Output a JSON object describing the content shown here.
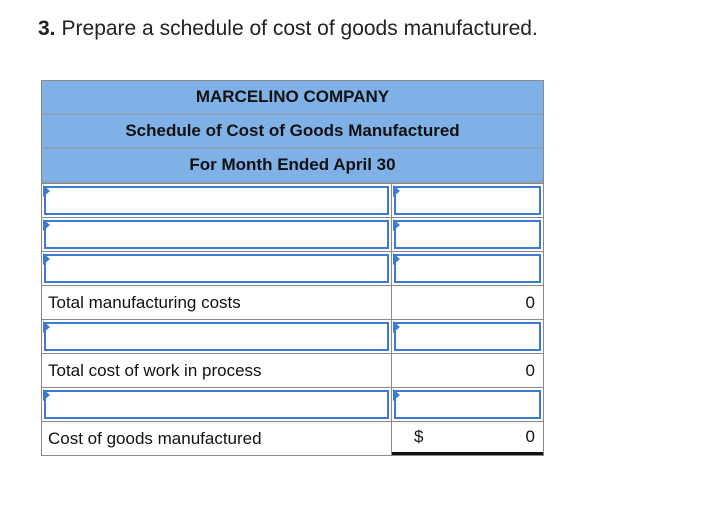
{
  "question": {
    "number": "3.",
    "text": "Prepare a schedule of cost of goods manufactured."
  },
  "schedule": {
    "company": "MARCELINO COMPANY",
    "title": "Schedule of Cost of Goods Manufactured",
    "period": "For Month Ended April 30",
    "rows": [
      {
        "type": "input",
        "label": "",
        "value": ""
      },
      {
        "type": "input",
        "label": "",
        "value": ""
      },
      {
        "type": "input",
        "label": "",
        "value": ""
      },
      {
        "type": "total",
        "label": "Total manufacturing costs",
        "value": "0"
      },
      {
        "type": "input",
        "label": "",
        "value": ""
      },
      {
        "type": "total",
        "label": "Total cost of work in process",
        "value": "0"
      },
      {
        "type": "input",
        "label": "",
        "value": ""
      },
      {
        "type": "final",
        "label": "Cost of goods manufactured",
        "currency": "$",
        "value": "0"
      }
    ]
  },
  "colors": {
    "header_bg": "#7fb0e6",
    "input_border": "#3d7ad6"
  }
}
